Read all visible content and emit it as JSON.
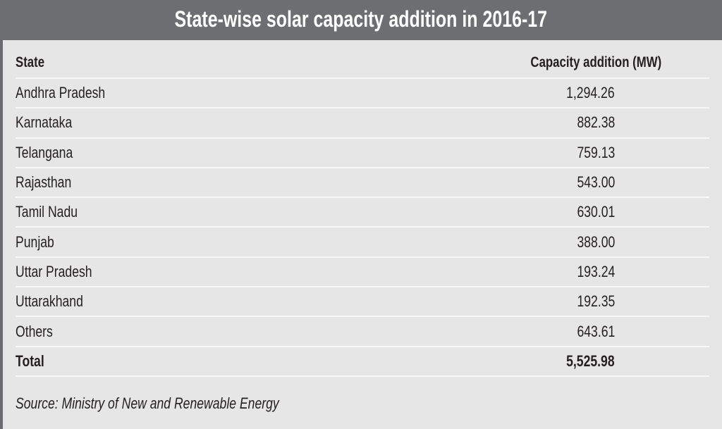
{
  "title": "State-wise solar capacity addition in 2016-17",
  "table": {
    "headers": {
      "state": "State",
      "capacity": "Capacity addition (MW)"
    },
    "rows": [
      {
        "state": "Andhra Pradesh",
        "capacity": "1,294.26"
      },
      {
        "state": "Karnataka",
        "capacity": "882.38"
      },
      {
        "state": "Telangana",
        "capacity": "759.13"
      },
      {
        "state": "Rajasthan",
        "capacity": "543.00"
      },
      {
        "state": "Tamil Nadu",
        "capacity": "630.01"
      },
      {
        "state": "Punjab",
        "capacity": "388.00"
      },
      {
        "state": "Uttar Pradesh",
        "capacity": "193.24"
      },
      {
        "state": "Uttarakhand",
        "capacity": "192.35"
      },
      {
        "state": "Others",
        "capacity": "643.61"
      }
    ],
    "total": {
      "state": "Total",
      "capacity": "5,525.98"
    }
  },
  "source": "Source: Ministry of New and Renewable Energy",
  "colors": {
    "header_bg": "#6d6e71",
    "body_bg": "#e6e6e7",
    "text": "#231f20",
    "divider": "#f7f7f8"
  }
}
